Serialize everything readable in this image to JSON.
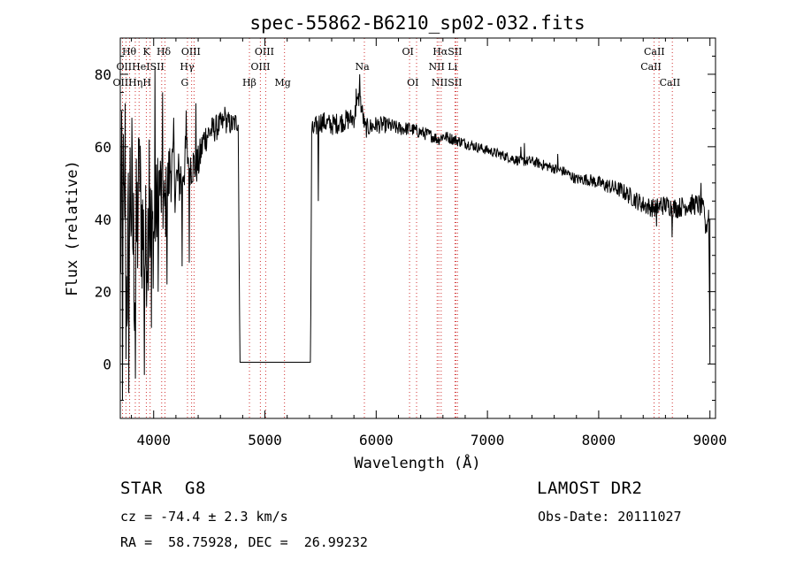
{
  "chart_data": {
    "type": "line",
    "title": "spec-55862-B6210_sp02-032.fits",
    "xlabel": "Wavelength (Å)",
    "ylabel": "Flux (relative)",
    "xlim": [
      3700,
      9050
    ],
    "ylim": [
      -15,
      90
    ],
    "xticks": [
      4000,
      5000,
      6000,
      7000,
      8000,
      9000
    ],
    "yticks": [
      0,
      20,
      40,
      60,
      80
    ],
    "grid": false,
    "legend": "none",
    "series": [
      {
        "line_color": "#000000",
        "anchors": [
          [
            3700,
            30
          ],
          [
            3720,
            55
          ],
          [
            3750,
            15
          ],
          [
            3790,
            50
          ],
          [
            3830,
            25
          ],
          [
            3870,
            48
          ],
          [
            3920,
            30
          ],
          [
            3960,
            40
          ],
          [
            4000,
            35
          ],
          [
            4050,
            50
          ],
          [
            4100,
            42
          ],
          [
            4150,
            55
          ],
          [
            4200,
            50
          ],
          [
            4250,
            52
          ],
          [
            4300,
            58
          ],
          [
            4340,
            55
          ],
          [
            4400,
            55
          ],
          [
            4450,
            62
          ],
          [
            4500,
            64
          ],
          [
            4550,
            65
          ],
          [
            4600,
            66
          ],
          [
            4650,
            67
          ],
          [
            4700,
            66
          ],
          [
            4760,
            67
          ],
          [
            4775,
            0.5
          ],
          [
            5410,
            0.5
          ],
          [
            5420,
            64
          ],
          [
            5500,
            67
          ],
          [
            5600,
            66
          ],
          [
            5700,
            67
          ],
          [
            5800,
            68
          ],
          [
            5850,
            74
          ],
          [
            5900,
            65
          ],
          [
            6000,
            66
          ],
          [
            6100,
            66
          ],
          [
            6200,
            65
          ],
          [
            6300,
            65
          ],
          [
            6400,
            64
          ],
          [
            6500,
            63
          ],
          [
            6560,
            62
          ],
          [
            6600,
            63
          ],
          [
            6700,
            62
          ],
          [
            6800,
            61
          ],
          [
            6900,
            60
          ],
          [
            7000,
            59
          ],
          [
            7100,
            58
          ],
          [
            7200,
            57
          ],
          [
            7300,
            56
          ],
          [
            7400,
            56
          ],
          [
            7500,
            55
          ],
          [
            7600,
            54
          ],
          [
            7700,
            53
          ],
          [
            7800,
            51
          ],
          [
            7900,
            51
          ],
          [
            8000,
            50
          ],
          [
            8100,
            49
          ],
          [
            8200,
            48
          ],
          [
            8300,
            46
          ],
          [
            8400,
            44
          ],
          [
            8500,
            43
          ],
          [
            8600,
            44
          ],
          [
            8700,
            43
          ],
          [
            8800,
            44
          ],
          [
            8900,
            44
          ],
          [
            8950,
            42
          ],
          [
            8970,
            38
          ],
          [
            8990,
            42
          ],
          [
            9000,
            0
          ]
        ],
        "noise": [
          [
            3700,
            25
          ],
          [
            3850,
            25
          ],
          [
            3980,
            16
          ],
          [
            4100,
            11
          ],
          [
            4300,
            7
          ],
          [
            4500,
            4
          ],
          [
            4760,
            3
          ],
          [
            4775,
            0
          ],
          [
            5410,
            0
          ],
          [
            5420,
            3
          ],
          [
            5800,
            3
          ],
          [
            6200,
            2
          ],
          [
            7000,
            1.4
          ],
          [
            7800,
            1.5
          ],
          [
            8300,
            2.5
          ],
          [
            8900,
            3
          ],
          [
            9000,
            3
          ]
        ],
        "spikes": [
          [
            3720,
            -10
          ],
          [
            3745,
            72
          ],
          [
            3775,
            -8
          ],
          [
            3805,
            68
          ],
          [
            3835,
            -4
          ],
          [
            3870,
            62
          ],
          [
            3915,
            -3
          ],
          [
            3960,
            62
          ],
          [
            3980,
            10
          ],
          [
            4010,
            82
          ],
          [
            4040,
            20
          ],
          [
            4080,
            75
          ],
          [
            4120,
            22
          ],
          [
            4180,
            68
          ],
          [
            4255,
            27
          ],
          [
            4290,
            70
          ],
          [
            4320,
            28
          ],
          [
            4380,
            72
          ],
          [
            4640,
            71
          ],
          [
            5480,
            45
          ],
          [
            5820,
            76
          ],
          [
            5850,
            80
          ],
          [
            7300,
            60
          ],
          [
            7330,
            61
          ],
          [
            7610,
            55
          ],
          [
            7630,
            58
          ],
          [
            8520,
            38
          ],
          [
            8560,
            46
          ],
          [
            8660,
            35
          ],
          [
            8920,
            50
          ],
          [
            8960,
            36
          ]
        ]
      }
    ],
    "lines": [
      {
        "x": 3720,
        "labels": [
          "OII",
          "OII"
        ]
      },
      {
        "x": 3751,
        "labels": [
          "Hθ"
        ]
      },
      {
        "x": 3784,
        "labels": [
          "Hη"
        ]
      },
      {
        "x": 3835,
        "labels": [
          "Hη"
        ]
      },
      {
        "x": 3869,
        "labels": [
          "HeI"
        ]
      },
      {
        "x": 3934,
        "labels": [
          "K"
        ]
      },
      {
        "x": 3968,
        "labels": [
          "H"
        ]
      },
      {
        "x": 4072,
        "labels": [
          "SII"
        ]
      },
      {
        "x": 4102,
        "labels": [
          "Hδ"
        ]
      },
      {
        "x": 4304,
        "labels": [
          "G"
        ]
      },
      {
        "x": 4341,
        "labels": [
          "Hγ"
        ]
      },
      {
        "x": 4363,
        "labels": [
          "OIII"
        ]
      },
      {
        "x": 4861,
        "labels": [
          "Hβ"
        ]
      },
      {
        "x": 4959,
        "labels": [
          "OIII"
        ]
      },
      {
        "x": 5007,
        "labels": [
          "OIII"
        ]
      },
      {
        "x": 5176,
        "labels": [
          "Mg"
        ]
      },
      {
        "x": 5894,
        "labels": [
          "Na"
        ]
      },
      {
        "x": 6300,
        "labels": [
          "OI"
        ]
      },
      {
        "x": 6363,
        "labels": [
          "OI"
        ]
      },
      {
        "x": 6548,
        "labels": [
          "NII"
        ]
      },
      {
        "x": 6563,
        "labels": [
          "Hα"
        ]
      },
      {
        "x": 6584,
        "labels": [
          "NII"
        ]
      },
      {
        "x": 6708,
        "labels": [
          "Li"
        ]
      },
      {
        "x": 6717,
        "labels": [
          "SII"
        ]
      },
      {
        "x": 6731,
        "labels": [
          "SII"
        ]
      },
      {
        "x": 8498,
        "labels": [
          "CaII"
        ]
      },
      {
        "x": 8542,
        "labels": [
          "CaII"
        ]
      },
      {
        "x": 8662,
        "labels": [
          "CaII"
        ]
      }
    ],
    "line_label_texts": [
      {
        "text": "Hθ",
        "x": 3780,
        "row": 1
      },
      {
        "text": "K",
        "x": 3935,
        "row": 1
      },
      {
        "text": "Hδ",
        "x": 4090,
        "row": 1
      },
      {
        "text": "OIII",
        "x": 4335,
        "row": 1
      },
      {
        "text": "OIII",
        "x": 4995,
        "row": 1
      },
      {
        "text": "OI",
        "x": 6285,
        "row": 1
      },
      {
        "text": "HαSII",
        "x": 6640,
        "row": 1
      },
      {
        "text": "CaII",
        "x": 8500,
        "row": 1
      },
      {
        "text": "OIIHeISII",
        "x": 3880,
        "row": 2
      },
      {
        "text": "Hγ",
        "x": 4300,
        "row": 2
      },
      {
        "text": "OIII",
        "x": 4960,
        "row": 2
      },
      {
        "text": "Na",
        "x": 5875,
        "row": 2
      },
      {
        "text": "NII Li",
        "x": 6600,
        "row": 2
      },
      {
        "text": "CaII",
        "x": 8470,
        "row": 2
      },
      {
        "text": "OIIHηH",
        "x": 3805,
        "row": 3
      },
      {
        "text": "G",
        "x": 4280,
        "row": 3
      },
      {
        "text": "Hβ",
        "x": 4860,
        "row": 3
      },
      {
        "text": "Mg",
        "x": 5160,
        "row": 3
      },
      {
        "text": "OI",
        "x": 6330,
        "row": 3
      },
      {
        "text": "NIISII",
        "x": 6635,
        "row": 3
      },
      {
        "text": "CaII",
        "x": 8640,
        "row": 3
      }
    ]
  },
  "info": {
    "object_class": "STAR",
    "subclass": "G8",
    "survey": "LAMOST DR2",
    "redshift": "cz = -74.4 ± 2.3 km/s",
    "obs_date": "Obs-Date: 20111027",
    "coords": "RA =  58.75928, DEC =  26.99232"
  }
}
